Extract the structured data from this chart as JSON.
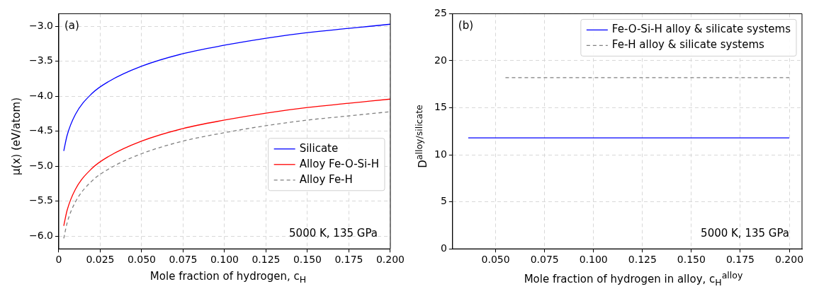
{
  "chart_data": [
    {
      "type": "line",
      "xlabel": "Mole fraction of hydrogen, c$_{H}$",
      "ylabel": "μ(x) (eV/atom)",
      "annotations": [
        "(a)",
        "5000 K, 135 GPa"
      ],
      "x": [
        0.003,
        0.005,
        0.01,
        0.02,
        0.03,
        0.05,
        0.075,
        0.1,
        0.125,
        0.15,
        0.175,
        0.2
      ],
      "series": [
        {
          "name": "Silicate",
          "color": "#0000ff",
          "values": [
            -4.78,
            -4.56,
            -4.26,
            -3.96,
            -3.79,
            -3.57,
            -3.39,
            -3.27,
            -3.17,
            -3.09,
            -3.03,
            -2.97
          ]
        },
        {
          "name": "Alloy Fe-O-Si-H",
          "color": "#ff0000",
          "values": [
            -5.85,
            -5.63,
            -5.33,
            -5.03,
            -4.86,
            -4.64,
            -4.46,
            -4.34,
            -4.24,
            -4.16,
            -4.1,
            -4.04
          ]
        },
        {
          "name": "Alloy Fe-H",
          "color": "#808080",
          "line_style": "dashed",
          "values": [
            -6.03,
            -5.81,
            -5.51,
            -5.21,
            -5.04,
            -4.82,
            -4.64,
            -4.52,
            -4.42,
            -4.34,
            -4.28,
            -4.22
          ]
        }
      ],
      "xlim": [
        0,
        0.2
      ],
      "ylim": [
        -6.18,
        -2.82
      ],
      "xticks": [
        0,
        {
          "value": 0.025,
          "label": "0.025"
        },
        {
          "value": 0.05,
          "label": "0.050"
        },
        {
          "value": 0.075,
          "label": "0.075"
        },
        {
          "value": 0.1,
          "label": "0.100"
        },
        {
          "value": 0.125,
          "label": "0.125"
        },
        {
          "value": 0.15,
          "label": "0.150"
        },
        {
          "value": 0.175,
          "label": "0.175"
        },
        {
          "value": 0.2,
          "label": "0.200"
        }
      ],
      "yticks": [
        {
          "value": -6,
          "label": "−6.0"
        },
        {
          "value": -5.5,
          "label": "−5.5"
        },
        {
          "value": -5,
          "label": "−5.0"
        },
        {
          "value": -4.5,
          "label": "−4.5"
        },
        {
          "value": -4,
          "label": "−4.0"
        },
        {
          "value": -3.5,
          "label": "−3.5"
        },
        {
          "value": -3,
          "label": "−3.0"
        }
      ],
      "grid": true,
      "legend": "right",
      "marker": "none",
      "line_style": "solid"
    },
    {
      "type": "line",
      "xlabel": "Mole fraction of hydrogen in alloy, c$_{H}$$^{alloy}$",
      "ylabel": "D$^{alloy/silicate}$",
      "annotations": [
        "(b)",
        "5000 K, 135 GPa"
      ],
      "series": [
        {
          "name": "Fe-O-Si-H alloy & silicate systems",
          "color": "#0000ff",
          "x": [
            0.036,
            0.2
          ],
          "values": [
            11.8,
            11.8
          ]
        },
        {
          "name": "Fe-H alloy & silicate systems",
          "color": "#808080",
          "line_style": "dashed",
          "x": [
            0.055,
            0.2
          ],
          "values": [
            18.2,
            18.2
          ]
        }
      ],
      "xlim": [
        0.028,
        0.2065
      ],
      "ylim": [
        0,
        25
      ],
      "xticks": [
        {
          "value": 0.05,
          "label": "0.050"
        },
        {
          "value": 0.075,
          "label": "0.075"
        },
        {
          "value": 0.1,
          "label": "0.100"
        },
        {
          "value": 0.125,
          "label": "0.125"
        },
        {
          "value": 0.15,
          "label": "0.150"
        },
        {
          "value": 0.175,
          "label": "0.175"
        },
        {
          "value": 0.2,
          "label": "0.200"
        }
      ],
      "yticks": [
        0,
        5,
        10,
        15,
        20,
        25
      ],
      "grid": true,
      "legend": "top right",
      "marker": "none",
      "line_style": "solid"
    }
  ]
}
